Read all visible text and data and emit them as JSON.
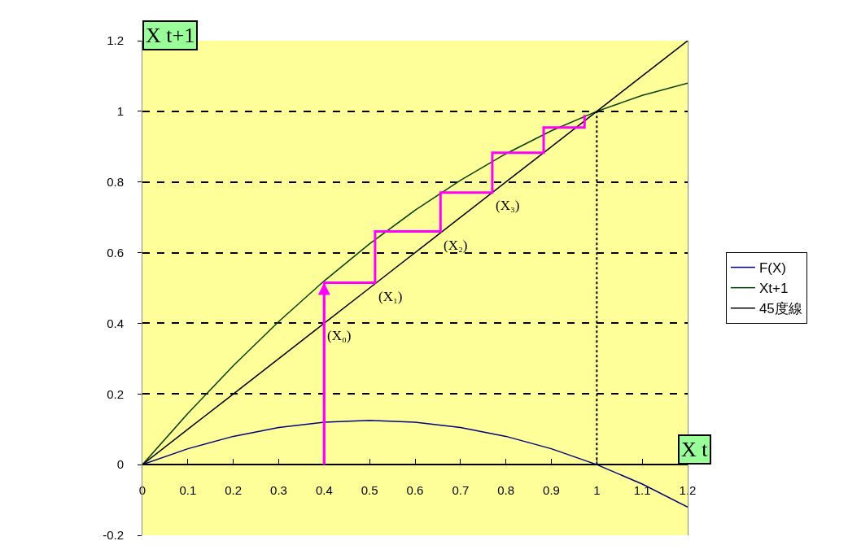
{
  "chart_data": {
    "type": "line",
    "xlabel": "X t",
    "ylabel": "X t+1",
    "x": [
      0,
      0.1,
      0.2,
      0.3,
      0.4,
      0.5,
      0.6,
      0.7,
      0.8,
      0.9,
      1,
      1.1,
      1.2
    ],
    "series": [
      {
        "name": "F(X)",
        "color": "#000080",
        "values": [
          0,
          0.045,
          0.08,
          0.105,
          0.12,
          0.125,
          0.12,
          0.105,
          0.08,
          0.045,
          0,
          -0.055,
          -0.12
        ]
      },
      {
        "name": "Xt+1",
        "color": "#004000",
        "values": [
          0,
          0.145,
          0.28,
          0.405,
          0.52,
          0.625,
          0.72,
          0.805,
          0.88,
          0.945,
          1,
          1.045,
          1.08
        ]
      },
      {
        "name": "45度線",
        "color": "#000000",
        "values": [
          0,
          0.1,
          0.2,
          0.3,
          0.4,
          0.5,
          0.6,
          0.7,
          0.8,
          0.9,
          1,
          1.1,
          1.2
        ]
      },
      {
        "color": "#ff00ff",
        "x": [
          0.4,
          0.4,
          0.512,
          0.512,
          0.656,
          0.656,
          0.77,
          0.77,
          0.883,
          0.883,
          0.973,
          0.973
        ],
        "values": [
          0,
          0.515,
          0.515,
          0.66,
          0.66,
          0.77,
          0.77,
          0.883,
          0.883,
          0.954,
          0.954,
          0.99
        ]
      }
    ],
    "ref_lines": [
      {
        "axis": "x",
        "value": 1,
        "color": "#000000",
        "line_style": "dotted"
      }
    ],
    "annotations": [
      {
        "text": "(X₀)",
        "x": 0.4,
        "y": 0.4
      },
      {
        "text": "(X₁)",
        "x": 0.512,
        "y": 0.512
      },
      {
        "text": "(X₂)",
        "x": 0.656,
        "y": 0.656
      },
      {
        "text": "(X₃)",
        "x": 0.77,
        "y": 0.77
      }
    ],
    "xlim": [
      0,
      1.2
    ],
    "xticks": [
      0,
      0.1,
      0.2,
      0.3,
      0.4,
      0.5,
      0.6,
      0.7,
      0.8,
      0.9,
      1,
      1.1,
      1.2
    ],
    "ylim": [
      -0.2,
      1.2
    ],
    "yticks": [
      -0.2,
      0,
      0.2,
      0.4,
      0.6,
      0.8,
      1,
      1.2
    ],
    "grid": "y",
    "legend": "right",
    "marker": "none",
    "line_style": "solid"
  }
}
